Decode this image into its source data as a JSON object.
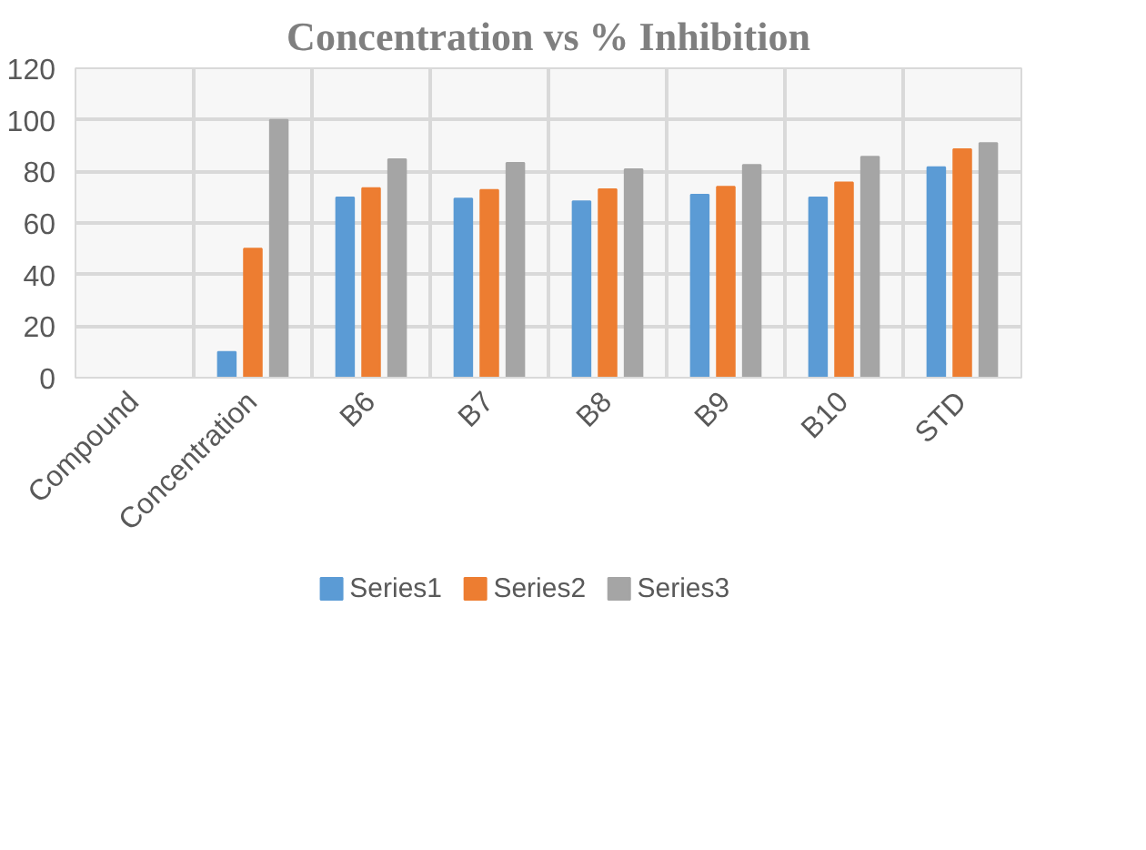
{
  "chart_data": {
    "type": "bar",
    "title": "Concentration vs % Inhibition",
    "categories": [
      "Compound",
      "Concentration",
      "B6",
      "B7",
      "B8",
      "B9",
      "B10",
      "STD"
    ],
    "series": [
      {
        "name": "Series1",
        "color": "#5b9bd5",
        "values": [
          null,
          10,
          69.9,
          69.4,
          68.4,
          70.9,
          69.9,
          81.6
        ]
      },
      {
        "name": "Series2",
        "color": "#ed7d31",
        "values": [
          null,
          50,
          73.5,
          72.8,
          73.1,
          74.0,
          75.7,
          88.6
        ]
      },
      {
        "name": "Series3",
        "color": "#a5a5a5",
        "values": [
          null,
          100,
          84.7,
          83.3,
          80.8,
          82.5,
          85.7,
          91.0
        ]
      }
    ],
    "ylim": [
      0,
      120
    ],
    "yticks": [
      0,
      20,
      40,
      60,
      80,
      100,
      120
    ],
    "grid": true,
    "legend": "bottom"
  }
}
